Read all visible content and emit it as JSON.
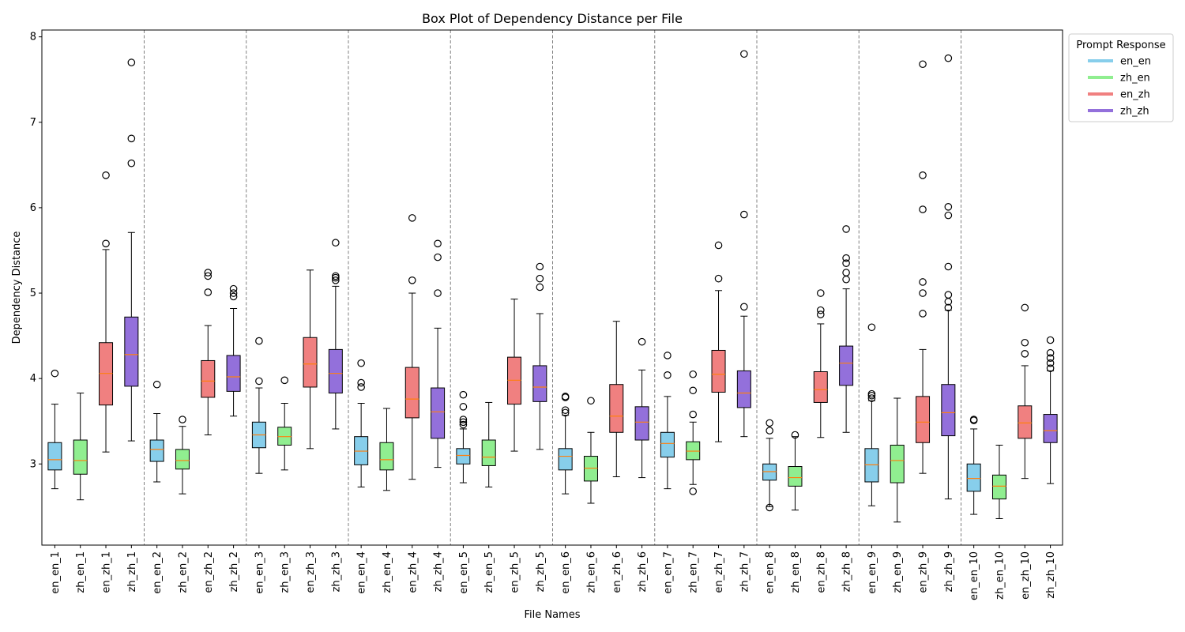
{
  "chart_data": {
    "type": "box",
    "title": "Box Plot of Dependency Distance per File",
    "xlabel": "File Names",
    "ylabel": "Dependency Distance",
    "ylim": [
      2.05,
      8.08
    ],
    "yticks": [
      3,
      4,
      5,
      6,
      7,
      8
    ],
    "grid": false,
    "separators_between_groups": true,
    "legend": {
      "title": "Prompt Response",
      "position": "outside-top-right",
      "entries": [
        {
          "label": "en_en",
          "color": "#87ceeb"
        },
        {
          "label": "zh_en",
          "color": "#90ee90"
        },
        {
          "label": "en_zh",
          "color": "#f08080"
        },
        {
          "label": "zh_zh",
          "color": "#9370db"
        }
      ]
    },
    "median_color": "#ff7f0e",
    "boxes": [
      {
        "name": "en_en_1",
        "type": "en_en",
        "low": 2.71,
        "q1": 2.93,
        "med": 3.05,
        "q3": 3.25,
        "high": 3.7,
        "out": [
          4.06
        ]
      },
      {
        "name": "zh_en_1",
        "type": "zh_en",
        "low": 2.58,
        "q1": 2.88,
        "med": 3.04,
        "q3": 3.28,
        "high": 3.83,
        "out": []
      },
      {
        "name": "en_zh_1",
        "type": "en_zh",
        "low": 3.14,
        "q1": 3.69,
        "med": 4.06,
        "q3": 4.42,
        "high": 5.51,
        "out": [
          5.58,
          6.38
        ]
      },
      {
        "name": "zh_zh_1",
        "type": "zh_zh",
        "low": 3.27,
        "q1": 3.91,
        "med": 4.28,
        "q3": 4.72,
        "high": 5.71,
        "out": [
          6.52,
          6.81,
          7.7
        ]
      },
      {
        "name": "en_en_2",
        "type": "en_en",
        "low": 2.79,
        "q1": 3.03,
        "med": 3.17,
        "q3": 3.28,
        "high": 3.59,
        "out": [
          3.93
        ]
      },
      {
        "name": "zh_en_2",
        "type": "zh_en",
        "low": 2.65,
        "q1": 2.94,
        "med": 3.04,
        "q3": 3.17,
        "high": 3.44,
        "out": [
          3.52
        ]
      },
      {
        "name": "en_zh_2",
        "type": "en_zh",
        "low": 3.34,
        "q1": 3.78,
        "med": 3.97,
        "q3": 4.21,
        "high": 4.62,
        "out": [
          5.01,
          5.2,
          5.24
        ]
      },
      {
        "name": "zh_zh_2",
        "type": "zh_zh",
        "low": 3.56,
        "q1": 3.85,
        "med": 4.02,
        "q3": 4.27,
        "high": 4.82,
        "out": [
          4.96,
          5.0,
          5.05
        ]
      },
      {
        "name": "en_en_3",
        "type": "en_en",
        "low": 2.89,
        "q1": 3.19,
        "med": 3.34,
        "q3": 3.49,
        "high": 3.89,
        "out": [
          3.97,
          4.44
        ]
      },
      {
        "name": "zh_en_3",
        "type": "zh_en",
        "low": 2.93,
        "q1": 3.22,
        "med": 3.32,
        "q3": 3.43,
        "high": 3.71,
        "out": [
          3.98
        ]
      },
      {
        "name": "en_zh_3",
        "type": "en_zh",
        "low": 3.18,
        "q1": 3.9,
        "med": 4.17,
        "q3": 4.48,
        "high": 5.27,
        "out": []
      },
      {
        "name": "zh_zh_3",
        "type": "zh_zh",
        "low": 3.41,
        "q1": 3.83,
        "med": 4.06,
        "q3": 4.34,
        "high": 5.08,
        "out": [
          5.15,
          5.18,
          5.2,
          5.59
        ]
      },
      {
        "name": "en_en_4",
        "type": "en_en",
        "low": 2.73,
        "q1": 2.99,
        "med": 3.15,
        "q3": 3.32,
        "high": 3.71,
        "out": [
          3.9,
          3.95,
          4.18
        ]
      },
      {
        "name": "zh_en_4",
        "type": "zh_en",
        "low": 2.69,
        "q1": 2.93,
        "med": 3.05,
        "q3": 3.25,
        "high": 3.65,
        "out": []
      },
      {
        "name": "en_zh_4",
        "type": "en_zh",
        "low": 2.82,
        "q1": 3.54,
        "med": 3.76,
        "q3": 4.13,
        "high": 5.0,
        "out": [
          5.15,
          5.88
        ]
      },
      {
        "name": "zh_zh_4",
        "type": "zh_zh",
        "low": 2.96,
        "q1": 3.3,
        "med": 3.61,
        "q3": 3.89,
        "high": 4.59,
        "out": [
          5.0,
          5.42,
          5.58
        ]
      },
      {
        "name": "en_en_5",
        "type": "en_en",
        "low": 2.78,
        "q1": 3.0,
        "med": 3.1,
        "q3": 3.18,
        "high": 3.41,
        "out": [
          3.46,
          3.49,
          3.52,
          3.67,
          3.81
        ]
      },
      {
        "name": "zh_en_5",
        "type": "zh_en",
        "low": 2.73,
        "q1": 2.98,
        "med": 3.08,
        "q3": 3.28,
        "high": 3.72,
        "out": []
      },
      {
        "name": "en_zh_5",
        "type": "en_zh",
        "low": 3.15,
        "q1": 3.7,
        "med": 3.98,
        "q3": 4.25,
        "high": 4.93,
        "out": []
      },
      {
        "name": "zh_zh_5",
        "type": "zh_zh",
        "low": 3.17,
        "q1": 3.73,
        "med": 3.9,
        "q3": 4.15,
        "high": 4.76,
        "out": [
          5.07,
          5.17,
          5.31
        ]
      },
      {
        "name": "en_en_6",
        "type": "en_en",
        "low": 2.65,
        "q1": 2.93,
        "med": 3.09,
        "q3": 3.18,
        "high": 3.57,
        "out": [
          3.6,
          3.63,
          3.78,
          3.79
        ]
      },
      {
        "name": "zh_en_6",
        "type": "zh_en",
        "low": 2.54,
        "q1": 2.8,
        "med": 2.95,
        "q3": 3.09,
        "high": 3.37,
        "out": [
          3.74
        ]
      },
      {
        "name": "en_zh_6",
        "type": "en_zh",
        "low": 2.85,
        "q1": 3.37,
        "med": 3.56,
        "q3": 3.93,
        "high": 4.67,
        "out": []
      },
      {
        "name": "zh_zh_6",
        "type": "zh_zh",
        "low": 2.84,
        "q1": 3.28,
        "med": 3.49,
        "q3": 3.67,
        "high": 4.1,
        "out": [
          4.43
        ]
      },
      {
        "name": "en_en_7",
        "type": "en_en",
        "low": 2.71,
        "q1": 3.08,
        "med": 3.24,
        "q3": 3.37,
        "high": 3.79,
        "out": [
          4.04,
          4.27
        ]
      },
      {
        "name": "zh_en_7",
        "type": "zh_en",
        "low": 2.76,
        "q1": 3.05,
        "med": 3.15,
        "q3": 3.26,
        "high": 3.49,
        "out": [
          2.68,
          3.58,
          3.86,
          4.05
        ]
      },
      {
        "name": "en_zh_7",
        "type": "en_zh",
        "low": 3.26,
        "q1": 3.84,
        "med": 4.05,
        "q3": 4.33,
        "high": 5.03,
        "out": [
          5.17,
          5.56
        ]
      },
      {
        "name": "zh_zh_7",
        "type": "zh_zh",
        "low": 3.32,
        "q1": 3.66,
        "med": 3.83,
        "q3": 4.09,
        "high": 4.73,
        "out": [
          4.84,
          5.92,
          7.8
        ]
      },
      {
        "name": "en_en_8",
        "type": "en_en",
        "low": 2.5,
        "q1": 2.81,
        "med": 2.91,
        "q3": 3.0,
        "high": 3.3,
        "out": [
          2.49,
          3.39,
          3.48
        ]
      },
      {
        "name": "zh_en_8",
        "type": "zh_en",
        "low": 2.46,
        "q1": 2.74,
        "med": 2.84,
        "q3": 2.97,
        "high": 3.32,
        "out": [
          3.34
        ]
      },
      {
        "name": "en_zh_8",
        "type": "en_zh",
        "low": 3.31,
        "q1": 3.72,
        "med": 3.87,
        "q3": 4.08,
        "high": 4.64,
        "out": [
          4.75,
          4.8,
          5.0
        ]
      },
      {
        "name": "zh_zh_8",
        "type": "zh_zh",
        "low": 3.37,
        "q1": 3.92,
        "med": 4.18,
        "q3": 4.38,
        "high": 5.05,
        "out": [
          5.16,
          5.24,
          5.35,
          5.41,
          5.75
        ]
      },
      {
        "name": "en_en_9",
        "type": "en_en",
        "low": 2.51,
        "q1": 2.79,
        "med": 2.99,
        "q3": 3.18,
        "high": 3.74,
        "out": [
          3.77,
          3.8,
          3.82,
          4.6
        ]
      },
      {
        "name": "zh_en_9",
        "type": "zh_en",
        "low": 2.32,
        "q1": 2.78,
        "med": 3.04,
        "q3": 3.22,
        "high": 3.77,
        "out": []
      },
      {
        "name": "en_zh_9",
        "type": "en_zh",
        "low": 2.89,
        "q1": 3.25,
        "med": 3.49,
        "q3": 3.79,
        "high": 4.34,
        "out": [
          4.76,
          5.0,
          5.13,
          5.98,
          6.38,
          7.68
        ]
      },
      {
        "name": "zh_zh_9",
        "type": "zh_zh",
        "low": 2.59,
        "q1": 3.33,
        "med": 3.6,
        "q3": 3.93,
        "high": 4.8,
        "out": [
          4.83,
          4.9,
          4.98,
          5.31,
          5.91,
          6.01,
          7.75
        ]
      },
      {
        "name": "en_en_10",
        "type": "en_en",
        "low": 2.41,
        "q1": 2.68,
        "med": 2.83,
        "q3": 3.0,
        "high": 3.41,
        "out": [
          3.51,
          3.52
        ]
      },
      {
        "name": "zh_en_10",
        "type": "zh_en",
        "low": 2.36,
        "q1": 2.59,
        "med": 2.74,
        "q3": 2.87,
        "high": 3.22,
        "out": []
      },
      {
        "name": "en_zh_10",
        "type": "en_zh",
        "low": 2.83,
        "q1": 3.3,
        "med": 3.48,
        "q3": 3.68,
        "high": 4.15,
        "out": [
          4.29,
          4.42,
          4.83
        ]
      },
      {
        "name": "zh_zh_10",
        "type": "zh_zh",
        "low": 2.77,
        "q1": 3.25,
        "med": 3.39,
        "q3": 3.58,
        "high": 4.09,
        "out": [
          4.12,
          4.18,
          4.24,
          4.3,
          4.45
        ]
      }
    ]
  }
}
